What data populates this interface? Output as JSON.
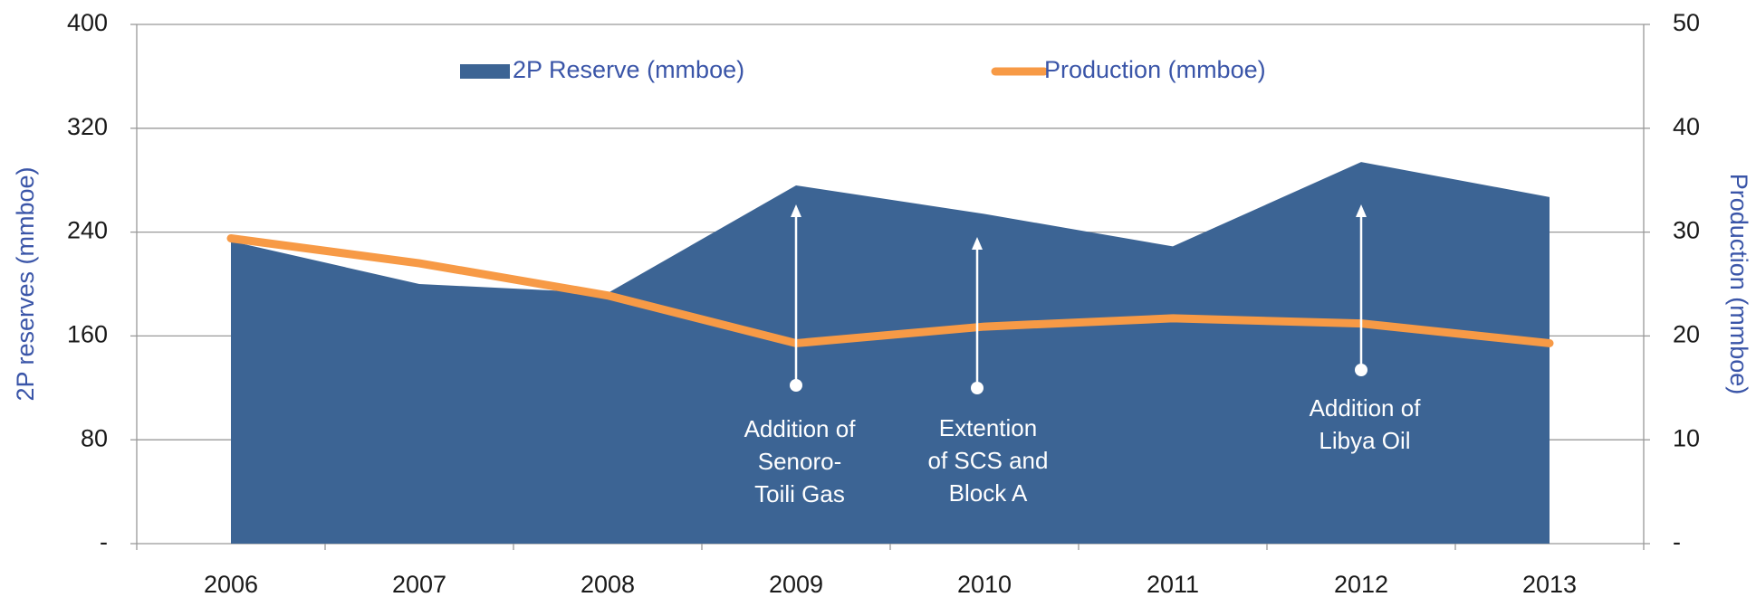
{
  "chart_data": {
    "type": "area-line",
    "categories": [
      "2006",
      "2007",
      "2008",
      "2009",
      "2010",
      "2011",
      "2012",
      "2013"
    ],
    "series": [
      {
        "name": "2P Reserve (mmboe)",
        "color": "#3c6494",
        "type": "area",
        "values": [
          233,
          200,
          193,
          276,
          254,
          229,
          294,
          267
        ]
      },
      {
        "name": "Production (mmboe)",
        "color": "#f79a46",
        "type": "line",
        "axis": "y2",
        "values": [
          29.4,
          27.0,
          23.9,
          19.3,
          20.9,
          21.7,
          21.2,
          19.3
        ]
      }
    ],
    "ylabel": "2P reserves (mmboe)",
    "y2label": "Production (mmboe)",
    "ylim": [
      0,
      400
    ],
    "yticks": [
      {
        "value": 0,
        "label": "-"
      },
      80,
      160,
      240,
      320,
      400
    ],
    "y2lim": [
      0,
      50
    ],
    "y2ticks": [
      {
        "value": 0,
        "label": "-"
      },
      10,
      20,
      30,
      40,
      50
    ],
    "grid": true,
    "legend": "top",
    "annotations": [
      {
        "category": "2009",
        "lines": [
          "Addition of",
          "Senoro-",
          "Toili Gas"
        ]
      },
      {
        "category": "2010",
        "lines": [
          "Extention",
          "of SCS and",
          "Block A"
        ]
      },
      {
        "category": "2012",
        "lines": [
          "Addition of",
          "Libya Oil"
        ]
      }
    ]
  }
}
